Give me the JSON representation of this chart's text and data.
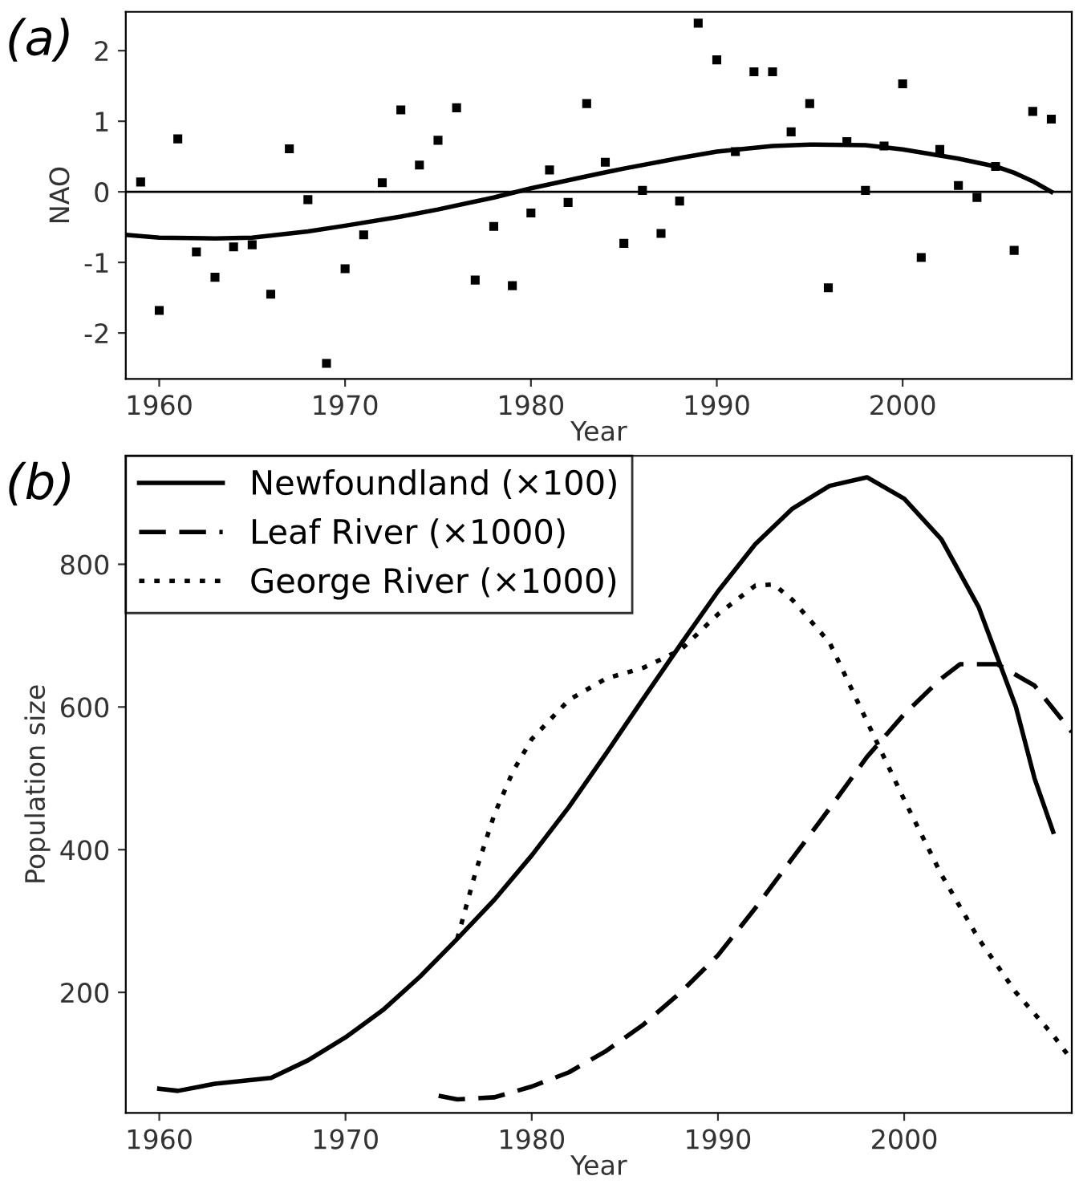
{
  "chart_data": [
    {
      "type": "scatter",
      "title": "(a)",
      "xlabel": "Year",
      "ylabel": "NAO",
      "xlim": [
        1958.2,
        2009.1
      ],
      "ylim": [
        -2.65,
        2.55
      ],
      "xticks": [
        1960,
        1970,
        1980,
        1990,
        2000
      ],
      "yticks": [
        -2,
        -1,
        0,
        1,
        2
      ],
      "grid": false,
      "legend": false,
      "ref_lines": [
        {
          "axis": "y",
          "value": 0,
          "color": "#000000",
          "line_style": "solid"
        }
      ],
      "series": [
        {
          "type": "scatter",
          "color": "#000000",
          "marker": "square",
          "x": [
            1959,
            1960,
            1961,
            1962,
            1963,
            1964,
            1965,
            1966,
            1967,
            1968,
            1969,
            1970,
            1971,
            1972,
            1973,
            1974,
            1975,
            1976,
            1977,
            1978,
            1979,
            1980,
            1981,
            1982,
            1983,
            1984,
            1985,
            1986,
            1987,
            1988,
            1989,
            1990,
            1991,
            1992,
            1993,
            1994,
            1995,
            1996,
            1997,
            1998,
            1999,
            2000,
            2001,
            2002,
            2003,
            2004,
            2005,
            2006,
            2007,
            2008
          ],
          "values": [
            0.14,
            -1.68,
            0.75,
            -0.85,
            -1.21,
            -0.78,
            -0.75,
            -1.45,
            0.61,
            -0.11,
            -2.43,
            -1.09,
            -0.61,
            0.13,
            1.16,
            0.38,
            0.73,
            1.19,
            -1.25,
            -0.49,
            -1.33,
            -0.3,
            0.31,
            -0.15,
            1.25,
            0.42,
            -0.73,
            0.02,
            -0.59,
            -0.13,
            2.39,
            1.87,
            0.57,
            1.7,
            1.7,
            0.85,
            1.25,
            -1.36,
            0.71,
            0.02,
            0.65,
            1.53,
            -0.93,
            0.6,
            0.09,
            -0.08,
            0.36,
            -0.83,
            1.14,
            1.03
          ]
        },
        {
          "type": "line",
          "color": "#000000",
          "line_style": "solid",
          "marker": "none",
          "x": [
            1958.2,
            1960,
            1963,
            1965,
            1968,
            1970,
            1973,
            1975,
            1978,
            1980,
            1983,
            1985,
            1988,
            1990,
            1993,
            1995,
            1998,
            2000,
            2003,
            2005,
            2006,
            2007,
            2008
          ],
          "values": [
            -0.61,
            -0.65,
            -0.66,
            -0.65,
            -0.56,
            -0.48,
            -0.35,
            -0.25,
            -0.08,
            0.05,
            0.22,
            0.33,
            0.48,
            0.57,
            0.65,
            0.67,
            0.66,
            0.6,
            0.47,
            0.36,
            0.27,
            0.15,
            0.0
          ]
        }
      ]
    },
    {
      "type": "line",
      "title": "(b)",
      "xlabel": "Year",
      "ylabel": "Population size",
      "xlim": [
        1958.2,
        2009.0
      ],
      "ylim": [
        31,
        952
      ],
      "xticks": [
        1960,
        1970,
        1980,
        1990,
        2000
      ],
      "yticks": [
        200,
        400,
        600,
        800
      ],
      "grid": false,
      "legend": "top left",
      "marker": "none",
      "series": [
        {
          "name": "Newfoundland (×100)",
          "color": "#000000",
          "line_style": "solid",
          "x": [
            1960,
            1961,
            1963,
            1966,
            1968,
            1970,
            1972,
            1974,
            1976,
            1978,
            1980,
            1982,
            1984,
            1986,
            1988,
            1990,
            1992,
            1994,
            1996,
            1998,
            2000,
            2002,
            2004,
            2006,
            2007,
            2008
          ],
          "values": [
            65,
            62,
            72,
            80,
            105,
            137,
            175,
            222,
            275,
            330,
            392,
            460,
            535,
            612,
            688,
            762,
            828,
            878,
            910,
            922,
            892,
            835,
            740,
            600,
            500,
            425
          ]
        },
        {
          "name": "Leaf River (×1000)",
          "color": "#000000",
          "line_style": "dashed",
          "x": [
            1975,
            1976,
            1978,
            1980,
            1982,
            1984,
            1986,
            1988,
            1990,
            1992,
            1994,
            1996,
            1998,
            2000,
            2002,
            2003,
            2005,
            2007,
            2009
          ],
          "values": [
            55,
            50,
            53,
            68,
            88,
            118,
            155,
            200,
            252,
            318,
            388,
            458,
            530,
            590,
            640,
            660,
            660,
            630,
            565
          ]
        },
        {
          "name": "George River (×1000)",
          "color": "#000000",
          "line_style": "dotted",
          "x": [
            1976,
            1977,
            1978,
            1979,
            1980,
            1982,
            1984,
            1986,
            1988,
            1990,
            1992,
            1993,
            1994,
            1996,
            1998,
            2000,
            2002,
            2004,
            2006,
            2008,
            2009
          ],
          "values": [
            275,
            370,
            450,
            510,
            555,
            610,
            640,
            655,
            680,
            730,
            770,
            772,
            750,
            690,
            580,
            470,
            365,
            275,
            200,
            140,
            105
          ]
        }
      ]
    }
  ]
}
